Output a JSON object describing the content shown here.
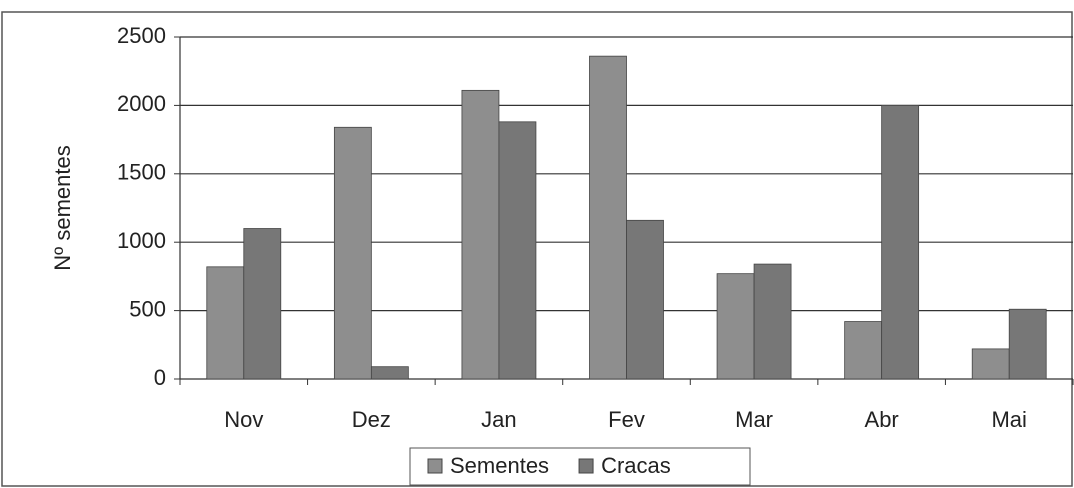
{
  "chart_data": {
    "type": "bar",
    "ylabel": "Nº sementes",
    "categories": [
      "Nov",
      "Dez",
      "Jan",
      "Fev",
      "Mar",
      "Abr",
      "Mai"
    ],
    "series": [
      {
        "name": "Sementes",
        "color": "#8e8e8e",
        "values": [
          820,
          1840,
          2110,
          2360,
          770,
          420,
          220
        ]
      },
      {
        "name": "Cracas",
        "color": "#777777",
        "values": [
          1100,
          90,
          1880,
          1160,
          840,
          2000,
          510
        ]
      }
    ],
    "ylim": [
      0,
      2500
    ],
    "yticks": [
      0,
      500,
      1000,
      1500,
      2000,
      2500
    ],
    "grid": true,
    "legend": "bottom"
  }
}
